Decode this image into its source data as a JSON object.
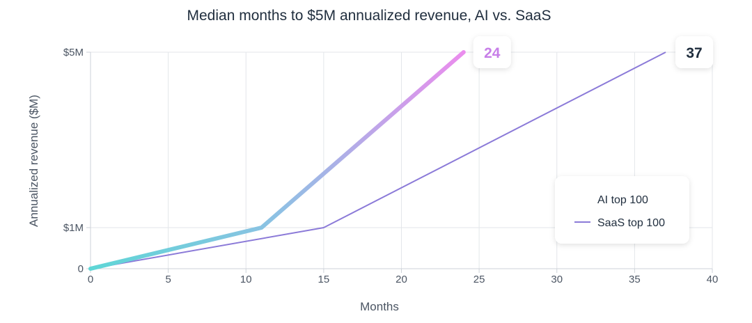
{
  "chart_data": {
    "type": "line",
    "title": "Median months to $5M annualized revenue, AI vs. SaaS",
    "xlabel": "Months",
    "ylabel": "Annualized revenue ($M)",
    "xlim": [
      0,
      40
    ],
    "ylim": [
      0,
      5
    ],
    "x_ticks": [
      0,
      5,
      10,
      15,
      20,
      25,
      30,
      35,
      40
    ],
    "y_ticks": [
      {
        "value": 0,
        "label": "0"
      },
      {
        "value": 1,
        "label": "$1M"
      },
      {
        "value": 5,
        "label": "$5M"
      }
    ],
    "y_scale_note": "non-linear spacing between $1M and $5M",
    "grid": true,
    "legend_position": "right",
    "series": [
      {
        "name": "AI top 100",
        "color_start": "#5ed6d6",
        "color_end": "#ea8ded",
        "points": [
          [
            0,
            0
          ],
          [
            11,
            1
          ],
          [
            24,
            5
          ]
        ],
        "end_label": "24",
        "end_label_color": "#c77ee8"
      },
      {
        "name": "SaaS top 100",
        "color": "#8b7ad8",
        "points": [
          [
            0,
            0
          ],
          [
            15,
            1
          ],
          [
            37,
            5
          ]
        ],
        "end_label": "37",
        "end_label_color": "#1f2d3d"
      }
    ]
  }
}
